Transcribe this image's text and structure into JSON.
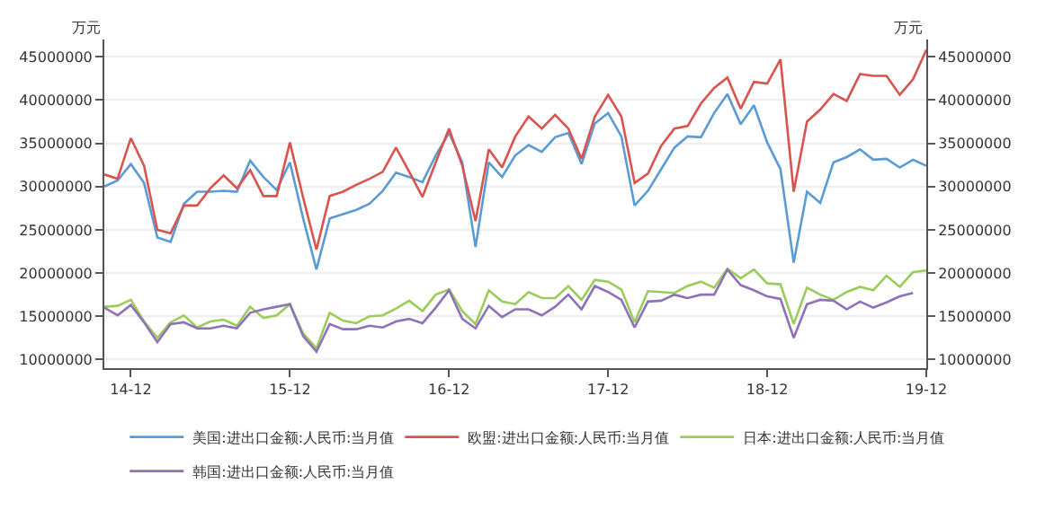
{
  "chart_data": {
    "type": "line",
    "ylabel": "万元",
    "y2label": "万元",
    "categories": [
      null,
      null,
      "14-12",
      null,
      null,
      null,
      null,
      null,
      null,
      null,
      null,
      null,
      null,
      null,
      "15-12",
      null,
      null,
      null,
      null,
      null,
      null,
      null,
      null,
      null,
      null,
      null,
      "16-12",
      null,
      null,
      null,
      null,
      null,
      null,
      null,
      null,
      null,
      null,
      null,
      "17-12",
      null,
      null,
      null,
      null,
      null,
      null,
      null,
      null,
      null,
      null,
      null,
      "18-12",
      null,
      null,
      null,
      null,
      null,
      null,
      null,
      null,
      null,
      null,
      null,
      "19-12"
    ],
    "series": [
      {
        "name": "美国:进出口金额:人民币:当月值",
        "color": "#5b9bd5",
        "values": [
          30000000,
          30700000,
          32600000,
          30400000,
          24100000,
          23600000,
          28000000,
          29400000,
          29400000,
          29500000,
          29400000,
          33000000,
          31100000,
          29600000,
          32800000,
          26300000,
          20400000,
          26300000,
          26800000,
          27300000,
          28000000,
          29500000,
          31600000,
          31100000,
          30500000,
          33600000,
          36200000,
          32800000,
          23000000,
          32800000,
          31100000,
          33600000,
          34800000,
          34000000,
          35700000,
          36200000,
          32600000,
          37300000,
          38500000,
          35800000,
          27800000,
          29500000,
          32000000,
          34500000,
          35800000,
          35700000,
          38500000,
          40700000,
          37200000,
          39400000,
          35100000,
          32000000,
          21200000,
          29400000,
          28100000,
          32800000,
          33400000,
          34300000,
          33100000,
          33200000,
          32200000,
          33100000,
          32400000
        ]
      },
      {
        "name": "欧盟:进出口金额:人民币:当月值",
        "color": "#d9534f",
        "values": [
          31400000,
          30900000,
          35600000,
          32400000,
          25000000,
          24600000,
          27800000,
          27800000,
          29800000,
          31300000,
          29800000,
          31900000,
          28900000,
          28900000,
          35100000,
          28700000,
          22700000,
          28900000,
          29400000,
          30200000,
          30900000,
          31700000,
          34500000,
          31700000,
          28800000,
          32800000,
          36700000,
          32400000,
          26000000,
          34300000,
          32200000,
          35800000,
          38100000,
          36700000,
          38300000,
          36700000,
          33200000,
          38100000,
          40600000,
          38100000,
          30400000,
          31500000,
          34700000,
          36700000,
          37000000,
          39600000,
          41400000,
          42600000,
          39000000,
          42100000,
          41900000,
          44700000,
          29400000,
          37500000,
          38900000,
          40700000,
          39900000,
          43000000,
          42800000,
          42800000,
          40600000,
          42400000,
          45800000
        ]
      },
      {
        "name": "日本:进出口金额:人民币:当月值",
        "color": "#9bcc5a",
        "values": [
          16100000,
          16200000,
          16900000,
          14400000,
          12500000,
          14300000,
          15100000,
          13700000,
          14400000,
          14600000,
          13900000,
          16100000,
          14800000,
          15100000,
          16400000,
          13000000,
          11300000,
          15400000,
          14500000,
          14200000,
          15000000,
          15100000,
          15900000,
          16800000,
          15600000,
          17500000,
          18100000,
          15600000,
          14100000,
          18000000,
          16700000,
          16400000,
          17800000,
          17100000,
          17100000,
          18500000,
          16900000,
          19200000,
          19000000,
          18100000,
          14300000,
          17900000,
          17800000,
          17700000,
          18500000,
          19000000,
          18300000,
          20500000,
          19400000,
          20400000,
          18800000,
          18700000,
          14100000,
          18300000,
          17500000,
          16900000,
          17800000,
          18400000,
          18000000,
          19700000,
          18400000,
          20100000,
          20300000
        ]
      },
      {
        "name": "韩国:进出口金额:人民币:当月值",
        "color": "#8e72b8",
        "values": [
          16000000,
          15100000,
          16300000,
          14300000,
          12000000,
          14100000,
          14300000,
          13600000,
          13600000,
          13900000,
          13600000,
          15400000,
          15800000,
          16100000,
          16400000,
          12700000,
          10900000,
          14100000,
          13500000,
          13500000,
          13900000,
          13700000,
          14400000,
          14700000,
          14200000,
          16000000,
          18000000,
          14700000,
          13600000,
          16200000,
          14900000,
          15800000,
          15800000,
          15100000,
          16100000,
          17500000,
          15800000,
          18500000,
          17800000,
          16900000,
          13700000,
          16700000,
          16800000,
          17500000,
          17100000,
          17500000,
          17500000,
          20400000,
          18600000,
          18000000,
          17300000,
          17000000,
          12500000,
          16400000,
          16900000,
          16800000,
          15800000,
          16700000,
          16000000,
          16600000,
          17300000,
          17700000,
          null
        ]
      }
    ],
    "ylim": [
      9000000,
      47000000
    ],
    "yticks": [
      10000000,
      15000000,
      20000000,
      25000000,
      30000000,
      35000000,
      40000000,
      45000000
    ],
    "y2lim": [
      9000000,
      47000000
    ],
    "y2ticks": [
      10000000,
      15000000,
      20000000,
      25000000,
      30000000,
      35000000,
      40000000,
      45000000
    ],
    "grid": "y",
    "legend": "bottom",
    "marker": "none",
    "line_style": "solid"
  }
}
